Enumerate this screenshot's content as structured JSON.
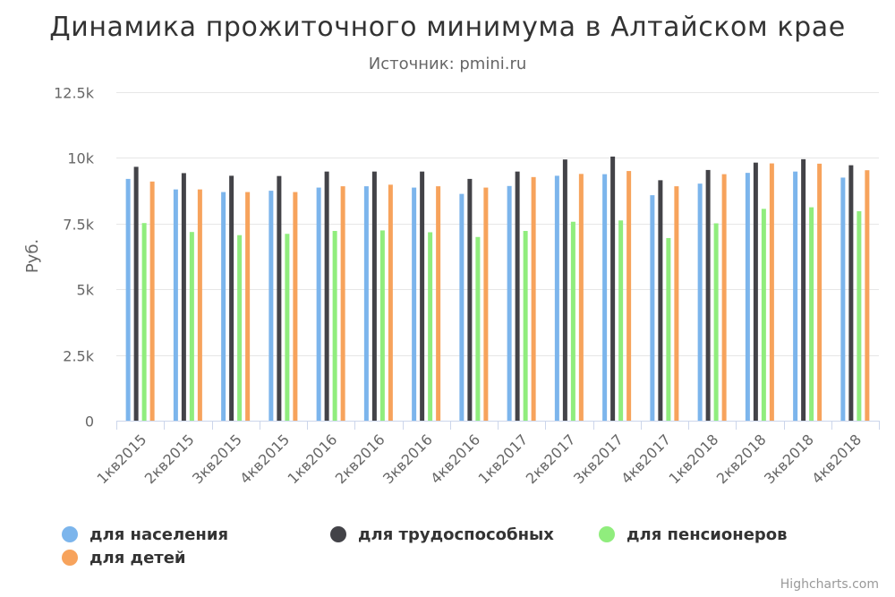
{
  "chart_data": {
    "type": "bar",
    "title": "Динамика прожиточного минимума в Алтайском крае",
    "subtitle": "Источник: pmini.ru",
    "ylabel": "Руб.",
    "ylim": [
      0,
      12500
    ],
    "yticks": [
      0,
      2500,
      5000,
      7500,
      10000,
      12500
    ],
    "ytick_labels": [
      "0",
      "2.5k",
      "5k",
      "7.5k",
      "10k",
      "12.5k"
    ],
    "grid": true,
    "legend_position": "bottom",
    "credits": "Highcharts.com",
    "categories": [
      "1кв2015",
      "2кв2015",
      "3кв2015",
      "4кв2015",
      "1кв2016",
      "2кв2016",
      "3кв2016",
      "4кв2016",
      "1кв2017",
      "2кв2017",
      "3кв2017",
      "4кв2017",
      "1кв2018",
      "2кв2018",
      "3кв2018",
      "4кв2018"
    ],
    "series": [
      {
        "name": "для населения",
        "color": "#7cb5ec",
        "values": [
          9200,
          8800,
          8700,
          8750,
          8870,
          8920,
          8870,
          8630,
          8930,
          9320,
          9380,
          8580,
          9020,
          9430,
          9480,
          9250
        ]
      },
      {
        "name": "для трудоспособных",
        "color": "#434348",
        "values": [
          9660,
          9420,
          9320,
          9310,
          9480,
          9480,
          9480,
          9200,
          9480,
          9940,
          10050,
          9150,
          9540,
          9820,
          9950,
          9720
        ]
      },
      {
        "name": "для пенсионеров",
        "color": "#90ed7d",
        "values": [
          7520,
          7180,
          7060,
          7110,
          7220,
          7240,
          7170,
          6990,
          7220,
          7570,
          7620,
          6950,
          7510,
          8060,
          8120,
          7970
        ]
      },
      {
        "name": "для детей",
        "color": "#f7a35c",
        "values": [
          9100,
          8800,
          8700,
          8700,
          8920,
          8980,
          8920,
          8870,
          9270,
          9390,
          9500,
          8920,
          9380,
          9790,
          9780,
          9530
        ]
      }
    ]
  }
}
